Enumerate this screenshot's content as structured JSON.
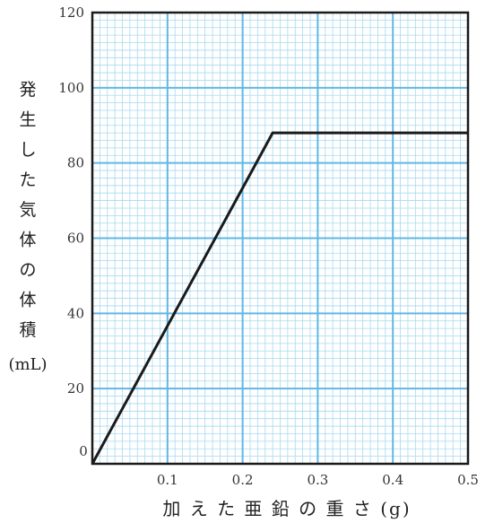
{
  "chart_data": {
    "type": "line",
    "ylabel_chars": [
      "発",
      "生",
      "し",
      "た",
      "気",
      "体",
      "の",
      "体",
      "積"
    ],
    "ylabel_unit": "(mL)",
    "xlabel": "加 え た 亜 鉛 の 重 さ (g)",
    "xlim": [
      0,
      0.5
    ],
    "ylim": [
      0,
      120
    ],
    "x_ticks": [
      "0.1",
      "0.2",
      "0.3",
      "0.4",
      "0.5"
    ],
    "y_ticks": [
      "20",
      "40",
      "60",
      "80",
      "100",
      "120"
    ],
    "origin_label": "0",
    "grid": true,
    "series": [
      {
        "x": [
          0,
          0.24,
          0.5
        ],
        "y": [
          0,
          88,
          88
        ]
      }
    ],
    "colors": {
      "grid_major": "#5fb8e3",
      "grid_minor": "#a9d9f0",
      "line": "#1a1a1a",
      "frame": "#1a1a1a"
    }
  }
}
